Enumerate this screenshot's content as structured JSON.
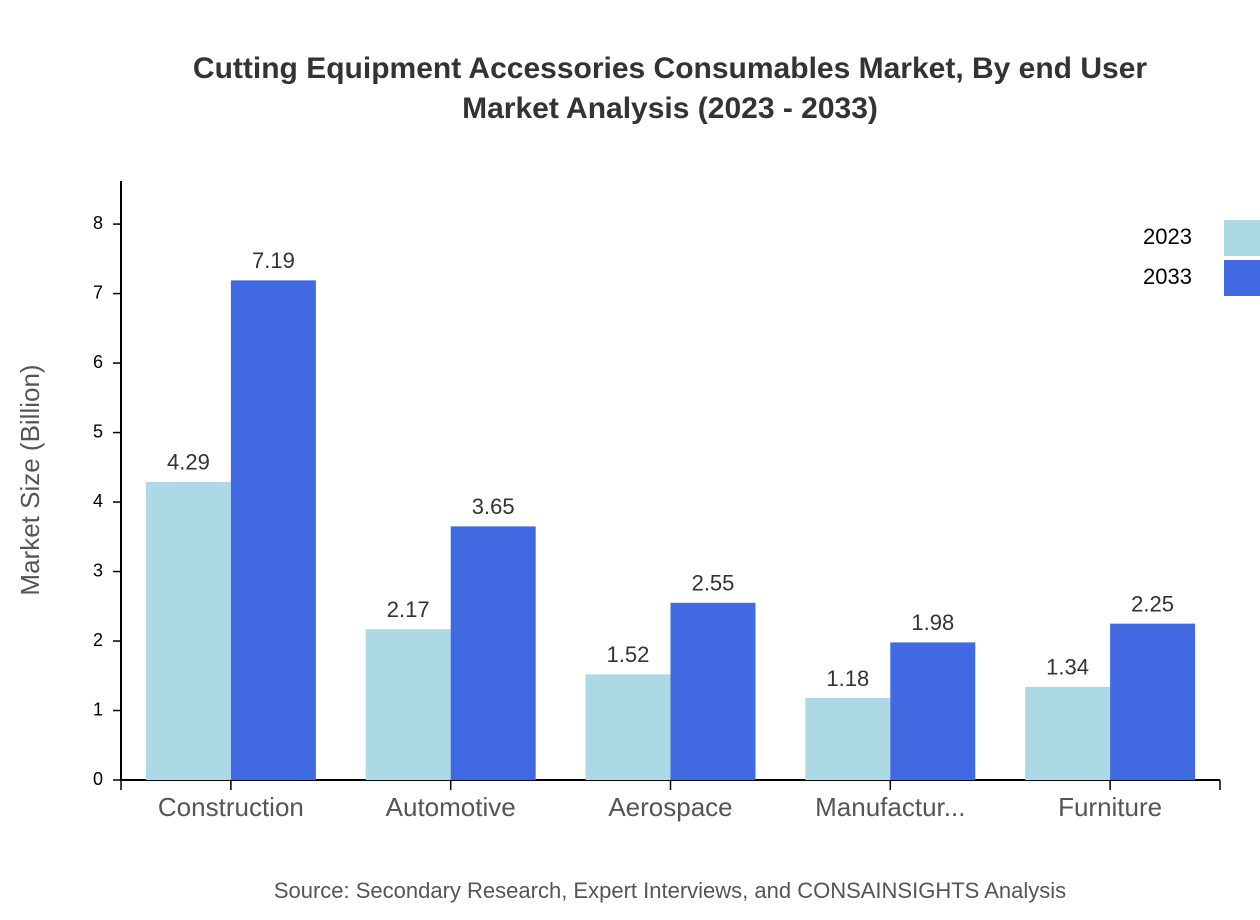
{
  "chart_data": {
    "type": "bar",
    "title": [
      "Cutting Equipment Accessories Consumables Market, By end User",
      "Market Analysis (2023 - 2033)"
    ],
    "y_label": "Market Size (Billion)",
    "source": "Source: Secondary Research, Expert Interviews, and CONSAINSIGHTS Analysis",
    "categories": [
      "Construction",
      "Automotive",
      "Aerospace",
      "Manufactur...",
      "Furniture"
    ],
    "series": [
      {
        "name": "2023",
        "color": "#add8e6",
        "values": [
          4.29,
          2.17,
          1.52,
          1.18,
          1.34
        ]
      },
      {
        "name": "2033",
        "color": "#4169e1",
        "values": [
          7.19,
          3.65,
          2.55,
          1.98,
          2.25
        ]
      }
    ],
    "ylim": [
      0,
      8.62
    ],
    "yticks": [
      0,
      1,
      2,
      3,
      4,
      5,
      6,
      7,
      8
    ],
    "legend": "top-right"
  }
}
